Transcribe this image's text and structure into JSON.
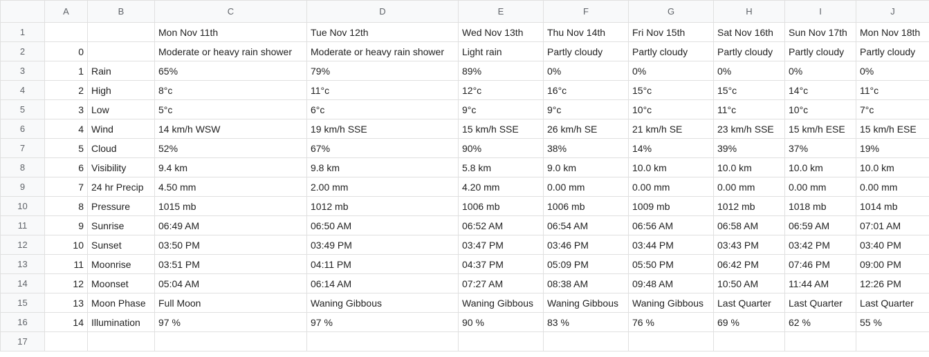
{
  "columns": [
    "A",
    "B",
    "C",
    "D",
    "E",
    "F",
    "G",
    "H",
    "I",
    "J"
  ],
  "row_numbers": [
    "1",
    "2",
    "3",
    "4",
    "5",
    "6",
    "7",
    "8",
    "9",
    "10",
    "11",
    "12",
    "13",
    "14",
    "15",
    "16",
    "17"
  ],
  "rows": [
    [
      "",
      "",
      "Mon Nov 11th",
      "Tue Nov 12th",
      "Wed Nov 13th",
      "Thu Nov 14th",
      "Fri Nov 15th",
      "Sat Nov 16th",
      "Sun Nov 17th",
      "Mon Nov 18th"
    ],
    [
      "0",
      "",
      "Moderate or heavy rain shower",
      "Moderate or heavy rain shower",
      "Light rain",
      "Partly cloudy",
      "Partly cloudy",
      "Partly cloudy",
      "Partly cloudy",
      "Partly cloudy"
    ],
    [
      "1",
      "Rain",
      "65%",
      "79%",
      "89%",
      "0%",
      "0%",
      "0%",
      "0%",
      "0%"
    ],
    [
      "2",
      "High",
      "8°c",
      "11°c",
      "12°c",
      "16°c",
      "15°c",
      "15°c",
      "14°c",
      "11°c"
    ],
    [
      "3",
      "Low",
      "5°c",
      "6°c",
      "9°c",
      "9°c",
      "10°c",
      "11°c",
      "10°c",
      "7°c"
    ],
    [
      "4",
      "Wind",
      "14 km/h WSW",
      "19 km/h SSE",
      "15 km/h SSE",
      "26 km/h SE",
      "21 km/h SE",
      "23 km/h SSE",
      "15 km/h ESE",
      "15 km/h ESE"
    ],
    [
      "5",
      "Cloud",
      "52%",
      "67%",
      "90%",
      "38%",
      "14%",
      "39%",
      "37%",
      "19%"
    ],
    [
      "6",
      "Visibility",
      "9.4 km",
      "9.8 km",
      "5.8 km",
      "9.0 km",
      "10.0 km",
      "10.0 km",
      "10.0 km",
      "10.0 km"
    ],
    [
      "7",
      "24 hr Precip",
      "4.50 mm",
      "2.00 mm",
      "4.20 mm",
      "0.00 mm",
      "0.00 mm",
      "0.00 mm",
      "0.00 mm",
      "0.00 mm"
    ],
    [
      "8",
      "Pressure",
      "1015 mb",
      "1012 mb",
      "1006 mb",
      "1006 mb",
      "1009 mb",
      "1012 mb",
      "1018 mb",
      "1014 mb"
    ],
    [
      "9",
      "Sunrise",
      "06:49 AM",
      "06:50 AM",
      "06:52 AM",
      "06:54 AM",
      "06:56 AM",
      "06:58 AM",
      "06:59 AM",
      "07:01 AM"
    ],
    [
      "10",
      "Sunset",
      "03:50 PM",
      "03:49 PM",
      "03:47 PM",
      "03:46 PM",
      "03:44 PM",
      "03:43 PM",
      "03:42 PM",
      "03:40 PM"
    ],
    [
      "11",
      "Moonrise",
      "03:51 PM",
      "04:11 PM",
      "04:37 PM",
      "05:09 PM",
      "05:50 PM",
      "06:42 PM",
      "07:46 PM",
      "09:00 PM"
    ],
    [
      "12",
      "Moonset",
      "05:04 AM",
      "06:14 AM",
      "07:27 AM",
      "08:38 AM",
      "09:48 AM",
      "10:50 AM",
      "11:44 AM",
      "12:26 PM"
    ],
    [
      "13",
      "Moon Phase",
      "Full Moon",
      "Waning Gibbous",
      "Waning Gibbous",
      "Waning Gibbous",
      "Waning Gibbous",
      "Last Quarter",
      "Last Quarter",
      "Last Quarter"
    ],
    [
      "14",
      "Illumination",
      "97 %",
      "97 %",
      "90 %",
      "83 %",
      "76 %",
      "69 %",
      "62 %",
      "55 %"
    ],
    [
      "",
      "",
      "",
      "",
      "",
      "",
      "",
      "",
      "",
      ""
    ]
  ]
}
